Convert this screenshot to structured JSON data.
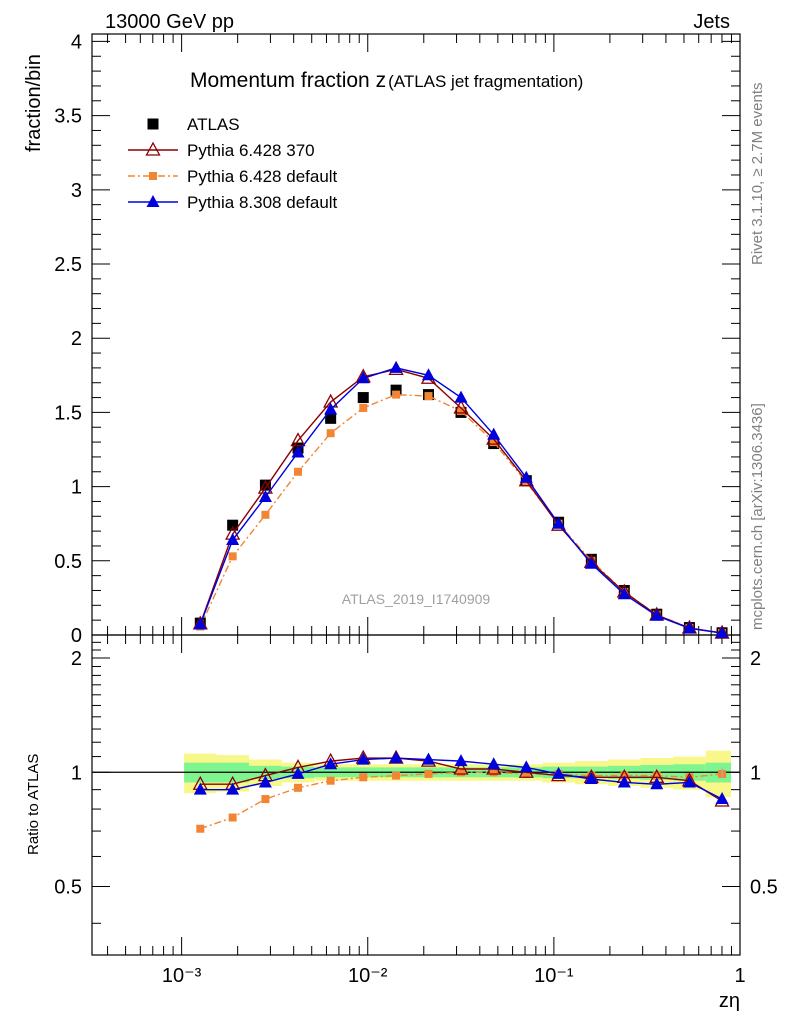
{
  "header": {
    "left": "13000 GeV pp",
    "right": "Jets"
  },
  "side_labels": {
    "rivet": "Rivet 3.1.10, ≥ 2.7M events",
    "mcplots": "mcplots.cern.ch [arXiv:1306.3436]"
  },
  "chart_data": [
    {
      "type": "scatter",
      "title": "Momentum fraction z",
      "subtitle": "(ATLAS jet fragmentation)",
      "watermark": "ATLAS_2019_I1740909",
      "xlabel": "zη",
      "ylabel": "fraction/bin",
      "xscale": "log",
      "xlim": [
        0.00033,
        1.0
      ],
      "ylim": [
        0,
        4.05
      ],
      "yticks": [
        "0",
        "0.5",
        "1",
        "1.5",
        "2",
        "2.5",
        "3",
        "3.5",
        "4"
      ],
      "xticks": [
        "10⁻³",
        "10⁻²",
        "10⁻¹",
        "1"
      ],
      "legend_position": "top-left",
      "x": [
        0.00126,
        0.00188,
        0.00282,
        0.00422,
        0.00632,
        0.00946,
        0.0142,
        0.0212,
        0.0317,
        0.0475,
        0.0711,
        0.106,
        0.159,
        0.239,
        0.357,
        0.535,
        0.801
      ],
      "series": [
        {
          "name": "ATLAS",
          "marker": "square",
          "color": "#000000",
          "values": [
            0.08,
            0.74,
            1.01,
            1.26,
            1.46,
            1.6,
            1.65,
            1.62,
            1.5,
            1.29,
            1.04,
            0.76,
            0.51,
            0.3,
            0.14,
            0.05,
            0.015
          ]
        },
        {
          "name": "Pythia 6.428 370",
          "marker": "open-triangle",
          "color": "#8b0000",
          "line": "solid",
          "values": [
            0.075,
            0.68,
            0.99,
            1.31,
            1.57,
            1.74,
            1.79,
            1.73,
            1.53,
            1.32,
            1.04,
            0.74,
            0.49,
            0.29,
            0.135,
            0.047,
            0.013
          ]
        },
        {
          "name": "Pythia 6.428 default",
          "marker": "square-small",
          "color": "#f28533",
          "line": "dashdot",
          "values": [
            0.057,
            0.53,
            0.81,
            1.1,
            1.36,
            1.53,
            1.62,
            1.61,
            1.51,
            1.3,
            1.03,
            0.75,
            0.5,
            0.29,
            0.137,
            0.048,
            0.014
          ]
        },
        {
          "name": "Pythia 8.308 default",
          "marker": "triangle",
          "color": "#0000dd",
          "line": "solid",
          "values": [
            0.072,
            0.64,
            0.93,
            1.23,
            1.52,
            1.73,
            1.8,
            1.75,
            1.6,
            1.35,
            1.06,
            0.75,
            0.48,
            0.275,
            0.13,
            0.045,
            0.013
          ]
        }
      ]
    },
    {
      "type": "line",
      "ylabel": "Ratio to ATLAS",
      "xscale": "log",
      "ylim": [
        0.33,
        2.3
      ],
      "yticks": [
        "0.5",
        "1",
        "2"
      ],
      "band_inner_color": "#7ff58f",
      "band_outer_color": "#f8f78a",
      "band_inner_halfwidth": [
        0.06,
        0.06,
        0.04,
        0.035,
        0.03,
        0.03,
        0.03,
        0.03,
        0.03,
        0.03,
        0.03,
        0.035,
        0.035,
        0.04,
        0.045,
        0.05,
        0.06
      ],
      "band_outer_halfwidth": [
        0.12,
        0.11,
        0.08,
        0.06,
        0.05,
        0.05,
        0.05,
        0.05,
        0.05,
        0.05,
        0.05,
        0.06,
        0.07,
        0.08,
        0.09,
        0.1,
        0.14
      ],
      "series": [
        {
          "name": "Pythia 6.428 370",
          "values": [
            0.93,
            0.93,
            0.98,
            1.03,
            1.07,
            1.09,
            1.09,
            1.07,
            1.02,
            1.02,
            1.0,
            0.98,
            0.97,
            0.97,
            0.97,
            0.95,
            0.84
          ]
        },
        {
          "name": "Pythia 6.428 default",
          "values": [
            0.71,
            0.76,
            0.85,
            0.91,
            0.95,
            0.97,
            0.98,
            0.99,
            1.0,
            1.0,
            0.99,
            0.99,
            0.98,
            0.98,
            0.98,
            0.97,
            0.99
          ]
        },
        {
          "name": "Pythia 8.308 default",
          "values": [
            0.9,
            0.9,
            0.94,
            0.99,
            1.05,
            1.08,
            1.09,
            1.08,
            1.07,
            1.05,
            1.03,
            0.99,
            0.96,
            0.94,
            0.93,
            0.94,
            0.85
          ]
        },
        {
          "name": "ATLAS",
          "values": [
            1.0,
            1.0,
            1.0,
            1.0,
            1.0,
            1.0,
            1.0,
            1.0,
            1.0,
            1.0,
            1.0,
            1.0,
            1.0,
            1.0,
            1.0,
            1.0,
            1.0
          ]
        }
      ]
    }
  ]
}
